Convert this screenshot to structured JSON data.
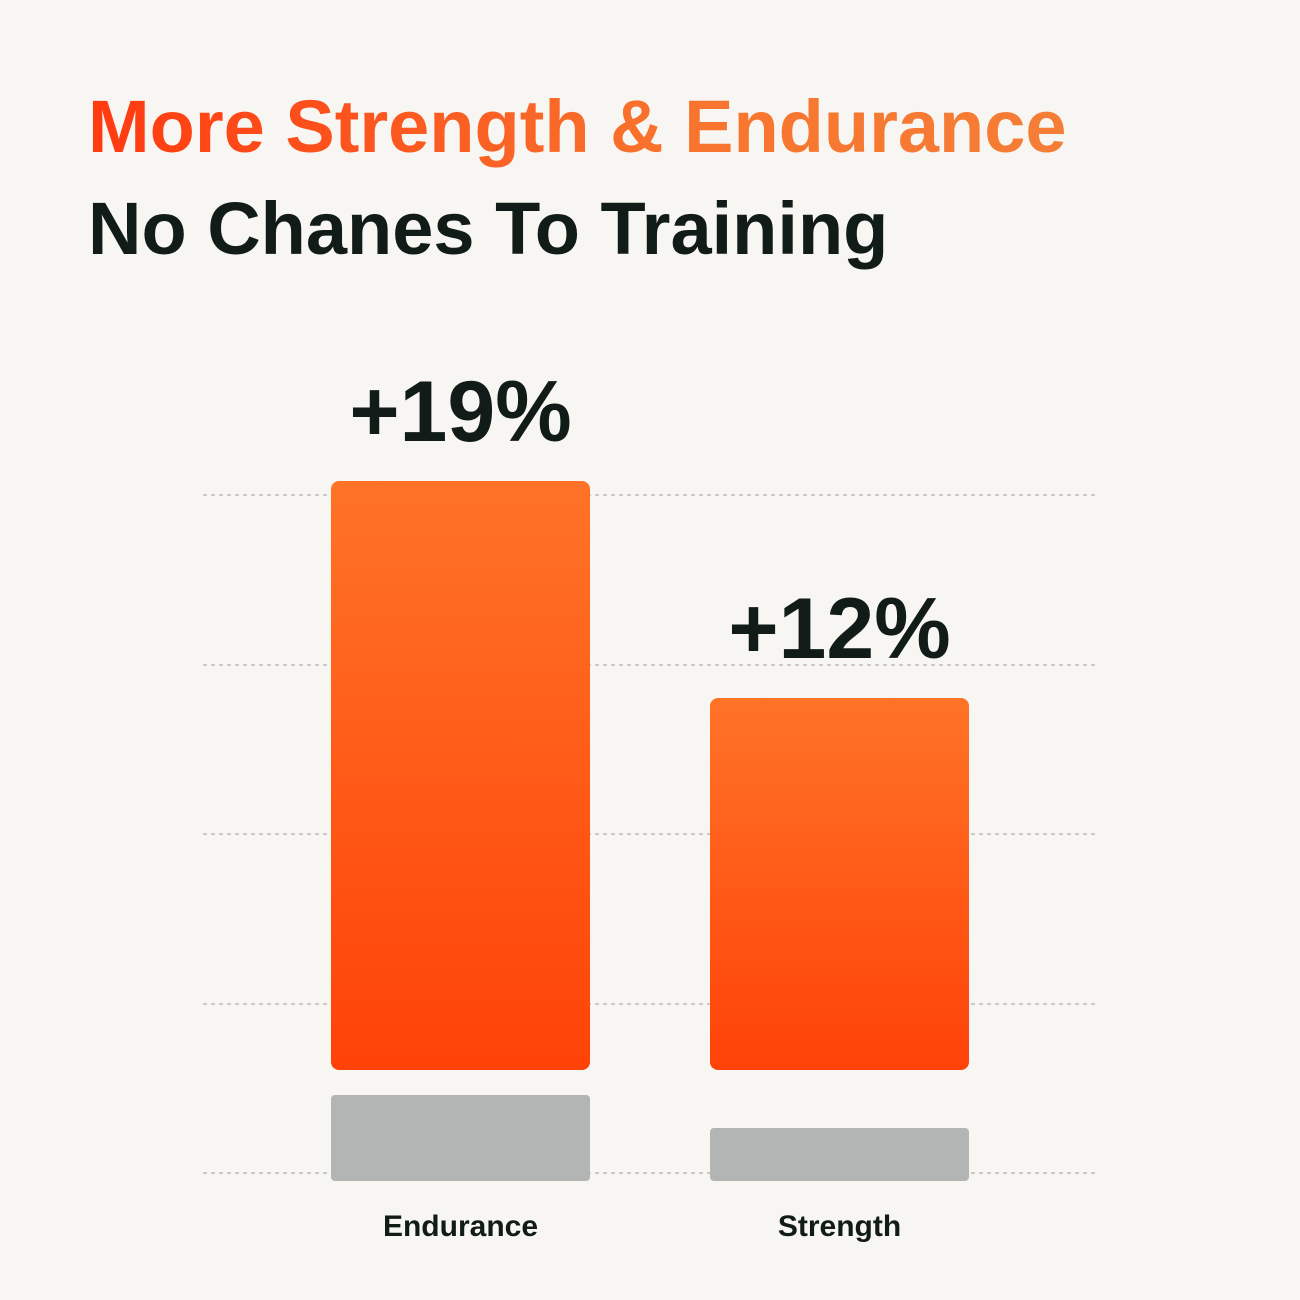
{
  "chart_data": {
    "type": "bar",
    "title": "More Strength & Endurance",
    "subtitle": "No Chanes To Training",
    "categories": [
      "Endurance",
      "Strength"
    ],
    "values": [
      19,
      12
    ],
    "value_labels": [
      "+19%",
      "+12%"
    ],
    "color": "#ff4f12"
  }
}
